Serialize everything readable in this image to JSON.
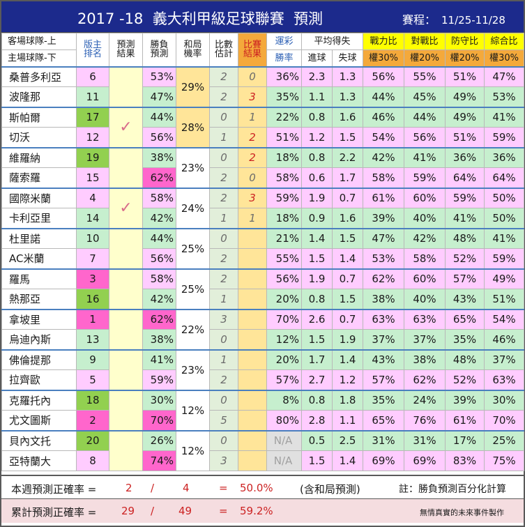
{
  "header": {
    "title": "2017 -18  義大利甲級足球聯賽  預測",
    "schedule_label": "賽程：",
    "schedule_dates": "11/25-11/28"
  },
  "columns": {
    "team_away": "客場球隊-上",
    "team_home": "主場球隊-下",
    "rank1": "版主",
    "rank2": "排名",
    "pred1": "預測",
    "pred2": "結果",
    "winlose1": "勝負",
    "winlose2": "預測",
    "draw1": "和局",
    "draw2": "機率",
    "score1": "比數",
    "score2": "估計",
    "result1": "比賽",
    "result2": "結果",
    "lottery1": "運彩",
    "lottery2": "勝率",
    "avg": "平均得失",
    "gain": "進球",
    "loss": "失球",
    "strength": "戰力比",
    "strength_w": "權30%",
    "h2h": "對戰比",
    "h2h_w": "權20%",
    "defense": "防守比",
    "defense_w": "權20%",
    "overall": "綜合比",
    "overall_w": "權30%"
  },
  "colors": {
    "title_bg": "#1c2a8c",
    "rank_green": "#92d050",
    "rank_pink": "#ffccff",
    "pct_pink": "#ff66cc",
    "pair_border": "#4a7fbf"
  },
  "matches": [
    {
      "check": "",
      "draw": "29%",
      "draw_bg": "#ffe599",
      "teams": [
        {
          "name": "桑普多利亞",
          "rank": "6",
          "rank_bg": "#ffccff",
          "wl": "53%",
          "wl_bg": "#ffccff",
          "score": "2",
          "result": "0",
          "result_red": false,
          "lot": "36%",
          "lot_bg": "#ffccff",
          "gain": "2.3",
          "loss": "1.3",
          "gl_bg": "#ffccff",
          "ratios": [
            "56%",
            "55%",
            "51%",
            "47%"
          ],
          "ratio_bg": "#ffccff"
        },
        {
          "name": "波隆那",
          "rank": "11",
          "rank_bg": "#c6efce",
          "wl": "47%",
          "wl_bg": "#c6efce",
          "score": "2",
          "result": "3",
          "result_red": true,
          "lot": "35%",
          "lot_bg": "#c6efce",
          "gain": "1.1",
          "loss": "1.3",
          "gl_bg": "#c6efce",
          "ratios": [
            "44%",
            "45%",
            "49%",
            "53%"
          ],
          "ratio_bg": "#c6efce"
        }
      ]
    },
    {
      "check": "✓",
      "draw": "28%",
      "draw_bg": "#ffe599",
      "teams": [
        {
          "name": "斯帕爾",
          "rank": "17",
          "rank_bg": "#92d050",
          "wl": "44%",
          "wl_bg": "#c6efce",
          "score": "0",
          "result": "1",
          "result_red": false,
          "lot": "22%",
          "lot_bg": "#c6efce",
          "gain": "0.8",
          "loss": "1.6",
          "gl_bg": "#c6efce",
          "ratios": [
            "46%",
            "44%",
            "49%",
            "41%"
          ],
          "ratio_bg": "#c6efce"
        },
        {
          "name": "切沃",
          "rank": "12",
          "rank_bg": "#ffccff",
          "wl": "56%",
          "wl_bg": "#ffccff",
          "score": "1",
          "result": "2",
          "result_red": true,
          "lot": "51%",
          "lot_bg": "#ffccff",
          "gain": "1.2",
          "loss": "1.5",
          "gl_bg": "#ffccff",
          "ratios": [
            "54%",
            "56%",
            "51%",
            "59%"
          ],
          "ratio_bg": "#ffccff"
        }
      ]
    },
    {
      "check": "",
      "draw": "23%",
      "draw_bg": "#ffffff",
      "teams": [
        {
          "name": "維羅納",
          "rank": "19",
          "rank_bg": "#92d050",
          "wl": "38%",
          "wl_bg": "#c6efce",
          "score": "0",
          "result": "2",
          "result_red": true,
          "lot": "18%",
          "lot_bg": "#c6efce",
          "gain": "0.8",
          "loss": "2.2",
          "gl_bg": "#c6efce",
          "ratios": [
            "42%",
            "41%",
            "36%",
            "36%"
          ],
          "ratio_bg": "#c6efce"
        },
        {
          "name": "薩索羅",
          "rank": "15",
          "rank_bg": "#ffccff",
          "wl": "62%",
          "wl_bg": "#ff66cc",
          "score": "2",
          "result": "0",
          "result_red": false,
          "lot": "58%",
          "lot_bg": "#ffccff",
          "gain": "0.6",
          "loss": "1.7",
          "gl_bg": "#ffccff",
          "ratios": [
            "58%",
            "59%",
            "64%",
            "64%"
          ],
          "ratio_bg": "#ffccff"
        }
      ]
    },
    {
      "check": "✓",
      "draw": "24%",
      "draw_bg": "#ffffff",
      "teams": [
        {
          "name": "國際米蘭",
          "rank": "4",
          "rank_bg": "#ffccff",
          "wl": "58%",
          "wl_bg": "#ffccff",
          "score": "2",
          "result": "3",
          "result_red": true,
          "lot": "59%",
          "lot_bg": "#ffccff",
          "gain": "1.9",
          "loss": "0.7",
          "gl_bg": "#ffccff",
          "ratios": [
            "61%",
            "60%",
            "59%",
            "50%"
          ],
          "ratio_bg": "#ffccff"
        },
        {
          "name": "卡利亞里",
          "rank": "14",
          "rank_bg": "#c6efce",
          "wl": "42%",
          "wl_bg": "#c6efce",
          "score": "1",
          "result": "1",
          "result_red": false,
          "lot": "18%",
          "lot_bg": "#c6efce",
          "gain": "0.9",
          "loss": "1.6",
          "gl_bg": "#c6efce",
          "ratios": [
            "39%",
            "40%",
            "41%",
            "50%"
          ],
          "ratio_bg": "#c6efce"
        }
      ]
    },
    {
      "check": "",
      "draw": "25%",
      "draw_bg": "#ffffff",
      "teams": [
        {
          "name": "杜里諾",
          "rank": "10",
          "rank_bg": "#c6efce",
          "wl": "44%",
          "wl_bg": "#c6efce",
          "score": "0",
          "result": "",
          "result_red": false,
          "lot": "21%",
          "lot_bg": "#c6efce",
          "gain": "1.4",
          "loss": "1.5",
          "gl_bg": "#c6efce",
          "ratios": [
            "47%",
            "42%",
            "48%",
            "41%"
          ],
          "ratio_bg": "#c6efce"
        },
        {
          "name": "AC米蘭",
          "rank": "7",
          "rank_bg": "#ffccff",
          "wl": "56%",
          "wl_bg": "#ffccff",
          "score": "2",
          "result": "",
          "result_red": false,
          "lot": "55%",
          "lot_bg": "#ffccff",
          "gain": "1.5",
          "loss": "1.4",
          "gl_bg": "#ffccff",
          "ratios": [
            "53%",
            "58%",
            "52%",
            "59%"
          ],
          "ratio_bg": "#ffccff"
        }
      ]
    },
    {
      "check": "",
      "draw": "25%",
      "draw_bg": "#ffffff",
      "teams": [
        {
          "name": "羅馬",
          "rank": "3",
          "rank_bg": "#ff66cc",
          "wl": "58%",
          "wl_bg": "#ffccff",
          "score": "2",
          "result": "",
          "result_red": false,
          "lot": "56%",
          "lot_bg": "#ffccff",
          "gain": "1.9",
          "loss": "0.7",
          "gl_bg": "#ffccff",
          "ratios": [
            "62%",
            "60%",
            "57%",
            "49%"
          ],
          "ratio_bg": "#ffccff"
        },
        {
          "name": "熱那亞",
          "rank": "16",
          "rank_bg": "#92d050",
          "wl": "42%",
          "wl_bg": "#c6efce",
          "score": "1",
          "result": "",
          "result_red": false,
          "lot": "20%",
          "lot_bg": "#c6efce",
          "gain": "0.8",
          "loss": "1.5",
          "gl_bg": "#c6efce",
          "ratios": [
            "38%",
            "40%",
            "43%",
            "51%"
          ],
          "ratio_bg": "#c6efce"
        }
      ]
    },
    {
      "check": "",
      "draw": "22%",
      "draw_bg": "#ffffff",
      "teams": [
        {
          "name": "拿坡里",
          "rank": "1",
          "rank_bg": "#ff66cc",
          "wl": "62%",
          "wl_bg": "#ff66cc",
          "score": "3",
          "result": "",
          "result_red": false,
          "lot": "70%",
          "lot_bg": "#ffccff",
          "gain": "2.6",
          "loss": "0.7",
          "gl_bg": "#ffccff",
          "ratios": [
            "63%",
            "63%",
            "65%",
            "54%"
          ],
          "ratio_bg": "#ffccff"
        },
        {
          "name": "烏迪內斯",
          "rank": "13",
          "rank_bg": "#c6efce",
          "wl": "38%",
          "wl_bg": "#c6efce",
          "score": "0",
          "result": "",
          "result_red": false,
          "lot": "12%",
          "lot_bg": "#c6efce",
          "gain": "1.5",
          "loss": "1.9",
          "gl_bg": "#c6efce",
          "ratios": [
            "37%",
            "37%",
            "35%",
            "46%"
          ],
          "ratio_bg": "#c6efce"
        }
      ]
    },
    {
      "check": "",
      "draw": "23%",
      "draw_bg": "#ffffff",
      "teams": [
        {
          "name": "佛倫提那",
          "rank": "9",
          "rank_bg": "#c6efce",
          "wl": "41%",
          "wl_bg": "#c6efce",
          "score": "1",
          "result": "",
          "result_red": false,
          "lot": "20%",
          "lot_bg": "#c6efce",
          "gain": "1.7",
          "loss": "1.4",
          "gl_bg": "#c6efce",
          "ratios": [
            "43%",
            "38%",
            "48%",
            "37%"
          ],
          "ratio_bg": "#c6efce"
        },
        {
          "name": "拉齊歐",
          "rank": "5",
          "rank_bg": "#ffccff",
          "wl": "59%",
          "wl_bg": "#ffccff",
          "score": "2",
          "result": "",
          "result_red": false,
          "lot": "57%",
          "lot_bg": "#ffccff",
          "gain": "2.7",
          "loss": "1.2",
          "gl_bg": "#ffccff",
          "ratios": [
            "57%",
            "62%",
            "52%",
            "63%"
          ],
          "ratio_bg": "#ffccff"
        }
      ]
    },
    {
      "check": "",
      "draw": "12%",
      "draw_bg": "#ffffff",
      "teams": [
        {
          "name": "克羅托內",
          "rank": "18",
          "rank_bg": "#92d050",
          "wl": "30%",
          "wl_bg": "#c6efce",
          "score": "0",
          "result": "",
          "result_red": false,
          "lot": "8%",
          "lot_bg": "#c6efce",
          "gain": "0.8",
          "loss": "1.8",
          "gl_bg": "#c6efce",
          "ratios": [
            "35%",
            "24%",
            "39%",
            "30%"
          ],
          "ratio_bg": "#c6efce"
        },
        {
          "name": "尤文圖斯",
          "rank": "2",
          "rank_bg": "#ff66cc",
          "wl": "70%",
          "wl_bg": "#ff66cc",
          "score": "5",
          "result": "",
          "result_red": false,
          "lot": "80%",
          "lot_bg": "#ffccff",
          "gain": "2.8",
          "loss": "1.1",
          "gl_bg": "#ffccff",
          "ratios": [
            "65%",
            "76%",
            "61%",
            "70%"
          ],
          "ratio_bg": "#ffccff"
        }
      ]
    },
    {
      "check": "",
      "draw": "12%",
      "draw_bg": "#ffffff",
      "teams": [
        {
          "name": "貝內文托",
          "rank": "20",
          "rank_bg": "#92d050",
          "wl": "26%",
          "wl_bg": "#c6efce",
          "score": "0",
          "result": "",
          "result_red": false,
          "lot": "N/A",
          "lot_bg": "#e0e0e0",
          "gain": "0.5",
          "loss": "2.5",
          "gl_bg": "#c6efce",
          "ratios": [
            "31%",
            "31%",
            "17%",
            "25%"
          ],
          "ratio_bg": "#c6efce"
        },
        {
          "name": "亞特蘭大",
          "rank": "8",
          "rank_bg": "#ffccff",
          "wl": "74%",
          "wl_bg": "#ff66cc",
          "score": "3",
          "result": "",
          "result_red": false,
          "lot": "N/A",
          "lot_bg": "#e0e0e0",
          "gain": "1.5",
          "loss": "1.4",
          "gl_bg": "#ffccff",
          "ratios": [
            "69%",
            "69%",
            "83%",
            "75%"
          ],
          "ratio_bg": "#ffccff"
        }
      ]
    }
  ],
  "footer": {
    "week_label": "本週預測正確率 =",
    "week_correct": "2",
    "week_slash": "/",
    "week_total": "4",
    "week_eq": "=",
    "week_pct": "50.0%",
    "week_note": "(含和局預測)",
    "week_remark": "註：勝負預測百分化計算",
    "total_label": "累計預測正確率 =",
    "total_correct": "29",
    "total_slash": "/",
    "total_total": "49",
    "total_eq": "=",
    "total_pct": "59.2%",
    "credit": "無情真實的未來事件製作"
  }
}
